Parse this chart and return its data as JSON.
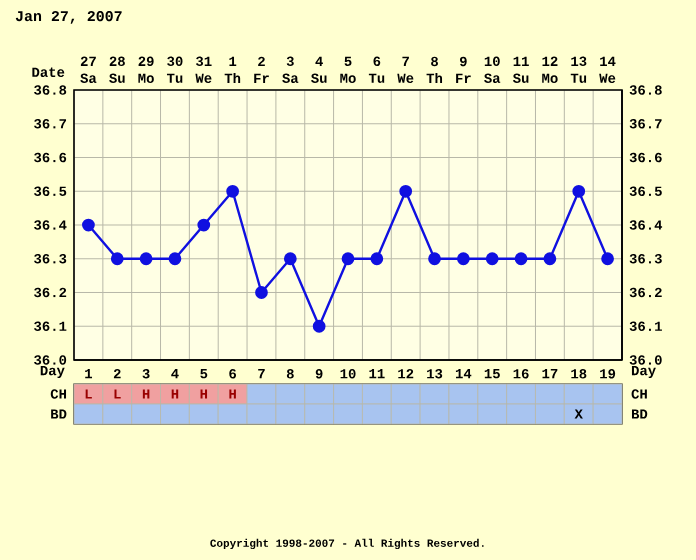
{
  "chart_data": [
    {
      "type": "line",
      "title": "Jan 27, 2007",
      "xlabel": "Date",
      "x2label": "Day",
      "categories": [
        "27 Sa",
        "28 Su",
        "29 Mo",
        "30 Tu",
        "31 We",
        "1 Th",
        "2 Fr",
        "3 Sa",
        "4 Su",
        "5 Mo",
        "6 Tu",
        "7 We",
        "8 Th",
        "9 Fr",
        "10 Sa",
        "11 Su",
        "12 Mo",
        "13 Tu",
        "14 We"
      ],
      "series": [
        {
          "color": "#1010e0",
          "values": [
            36.4,
            36.3,
            36.3,
            36.3,
            36.4,
            36.5,
            36.2,
            36.3,
            36.1,
            36.3,
            36.3,
            36.5,
            36.3,
            36.3,
            36.3,
            36.3,
            36.3,
            36.5,
            36.3
          ]
        }
      ],
      "ylim": [
        36.0,
        36.8
      ],
      "yticks": [
        {
          "value": 36.0,
          "label": "36.0"
        },
        36.1,
        36.2,
        36.3,
        36.4,
        36.5,
        36.6,
        36.7,
        36.8
      ],
      "y2lim": [
        36.0,
        36.8
      ],
      "y2ticks": [
        {
          "value": 36.0,
          "label": "36.0"
        },
        36.1,
        36.2,
        36.3,
        36.4,
        36.5,
        36.6,
        36.7,
        36.8
      ],
      "x2lim": [
        0.5,
        19.5
      ],
      "x2ticks": [
        1,
        2,
        3,
        4,
        5,
        6,
        7,
        8,
        9,
        10,
        11,
        12,
        13,
        14,
        15,
        16,
        17,
        18,
        19
      ],
      "grid": true,
      "marker": "circle",
      "line_style": "solid",
      "annotations": [
        "Copyright 1998-2007 - All Rights Reserved."
      ]
    },
    {
      "type": "heatmap",
      "categories": [
        null,
        null,
        null,
        null,
        null,
        null,
        null,
        null,
        null,
        null,
        null,
        null,
        null,
        null,
        null,
        null,
        null,
        null,
        null
      ],
      "y_categories": [
        "CH",
        "BD"
      ],
      "y2_categories": [
        "CH",
        "BD"
      ],
      "cells": [
        [
          null,
          null,
          null,
          null,
          null,
          null,
          null,
          null,
          null,
          null,
          null,
          null,
          null,
          null,
          null,
          null,
          null,
          null,
          null
        ],
        [
          null,
          null,
          null,
          null,
          null,
          null,
          null,
          null,
          null,
          null,
          null,
          null,
          null,
          null,
          null,
          null,
          null,
          null,
          null
        ]
      ],
      "cell_labels": [
        [
          "L",
          "L",
          "H",
          "H",
          "H",
          "H",
          null,
          null,
          null,
          null,
          null,
          null,
          null,
          null,
          null,
          null,
          null,
          null,
          null
        ],
        [
          null,
          null,
          null,
          null,
          null,
          null,
          null,
          null,
          null,
          null,
          null,
          null,
          null,
          null,
          null,
          null,
          null,
          "X",
          null
        ]
      ]
    }
  ]
}
